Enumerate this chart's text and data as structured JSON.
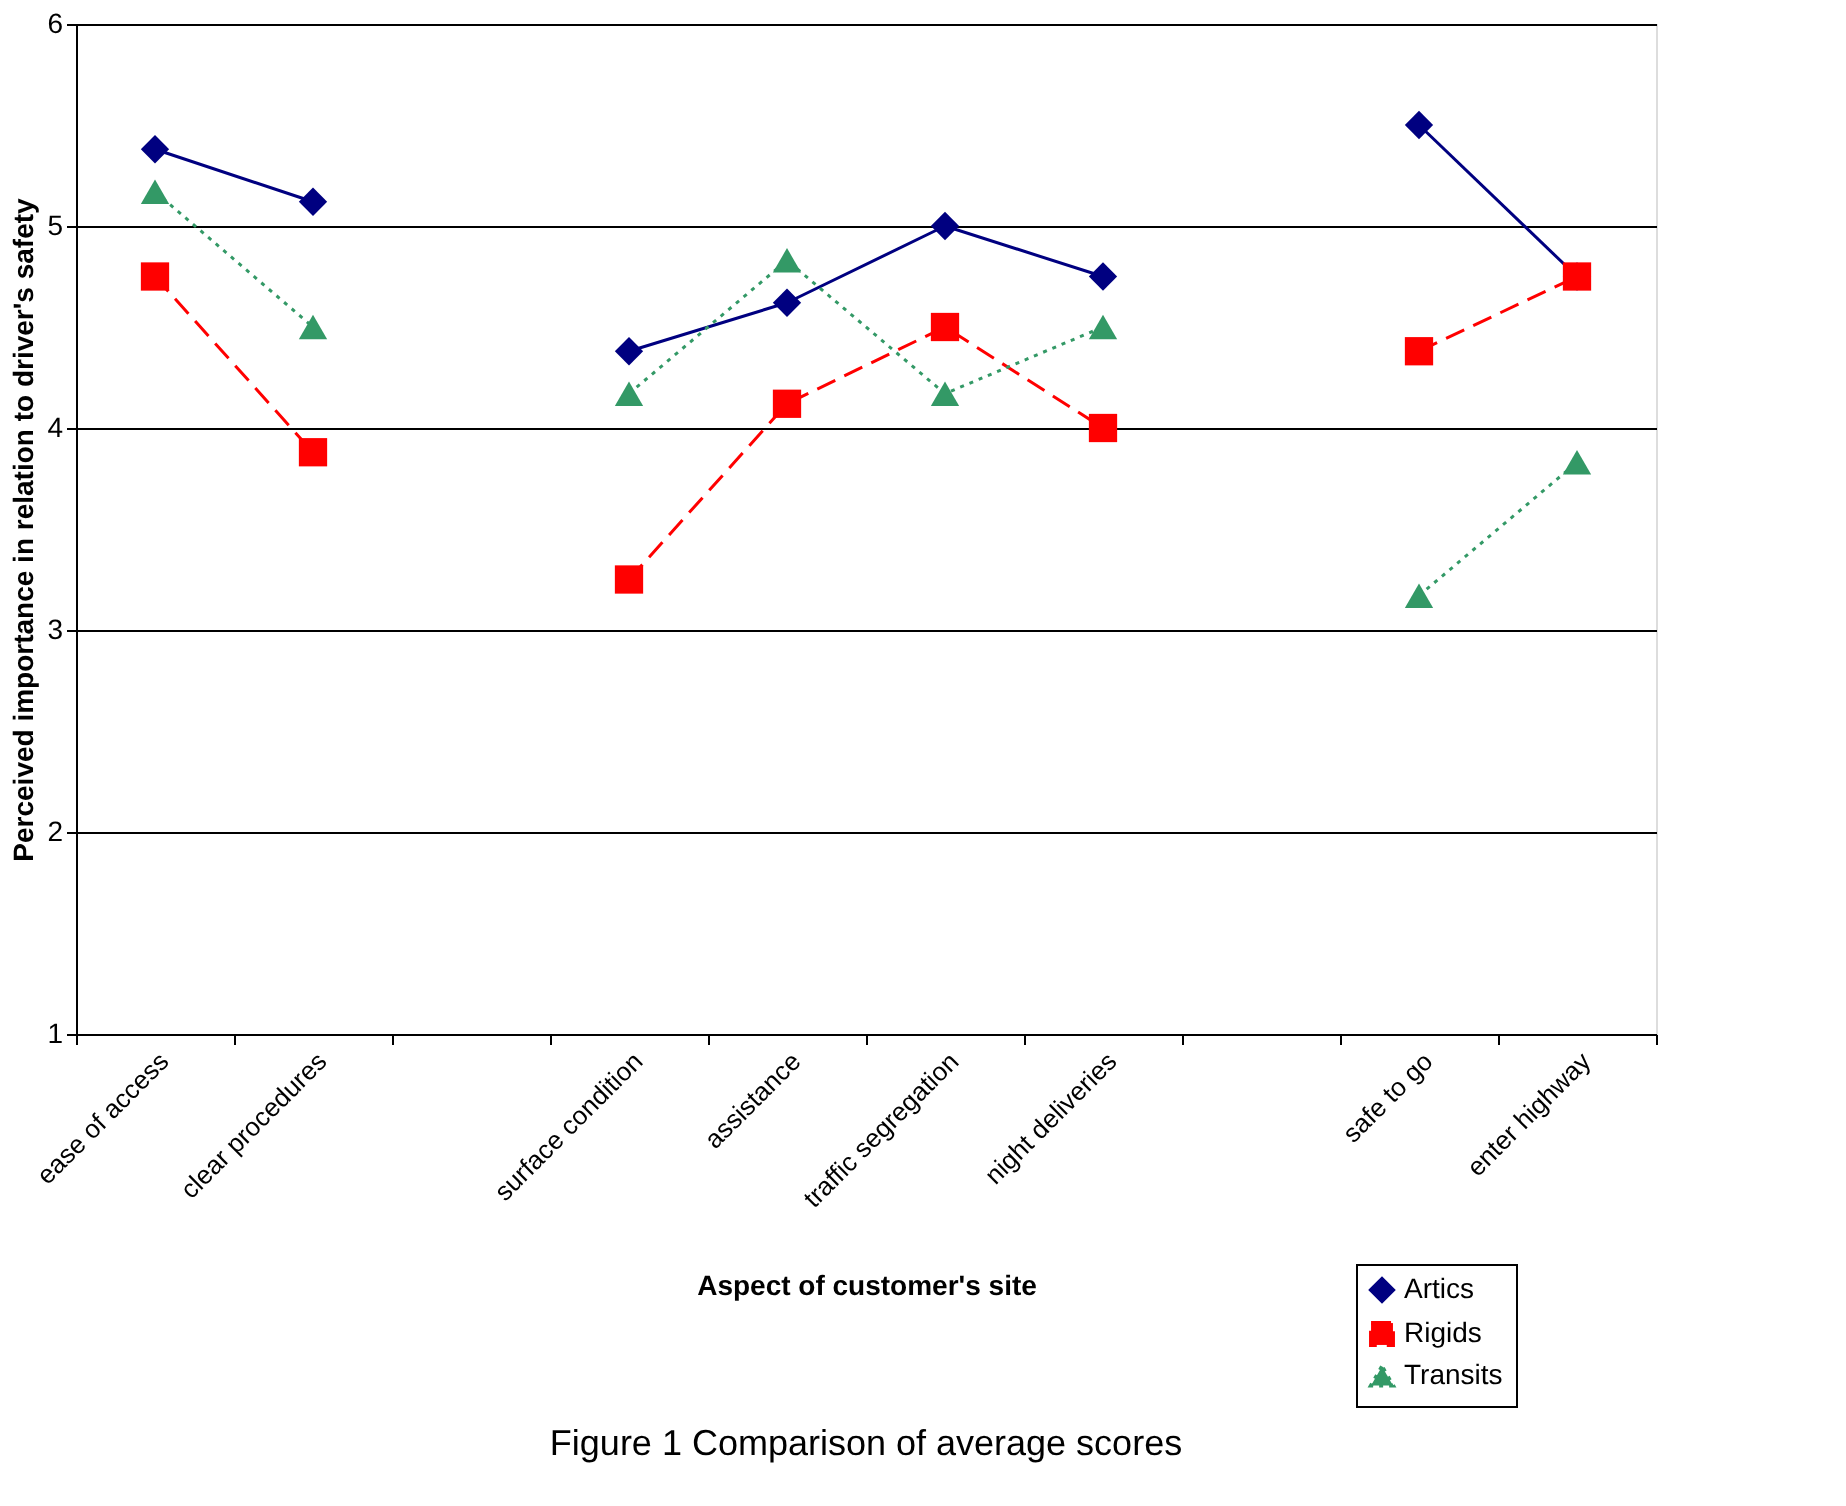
{
  "chart_data": {
    "type": "line",
    "title": "Figure 1 Comparison of average scores",
    "xlabel": "Aspect of customer's site",
    "ylabel": "Perceived importance in relation to driver's safety",
    "categories": [
      "ease of access",
      "clear procedures",
      null,
      "surface condition",
      "assistance",
      "traffic segregation",
      "night deliveries",
      null,
      "safe to go",
      "enter highway"
    ],
    "series": [
      {
        "name": "Artics",
        "color": "#000080",
        "marker": "diamond",
        "line_style": "solid",
        "values": [
          5.38,
          5.12,
          null,
          4.38,
          4.62,
          5.0,
          4.75,
          null,
          5.5,
          4.75
        ]
      },
      {
        "name": "Rigids",
        "color": "#ff0000",
        "marker": "square",
        "line_style": "dashed",
        "values": [
          4.75,
          3.88,
          null,
          3.25,
          4.12,
          4.5,
          4.0,
          null,
          4.38,
          4.75
        ]
      },
      {
        "name": "Transits",
        "color": "#339966",
        "marker": "triangle",
        "line_style": "dotted",
        "values": [
          5.17,
          4.5,
          null,
          4.17,
          4.83,
          4.17,
          4.5,
          null,
          3.17,
          3.83
        ]
      }
    ],
    "ylim": [
      1,
      6
    ],
    "yticks": [
      1,
      2,
      3,
      4,
      5,
      6
    ],
    "grid": "y",
    "legend": "bottom right"
  }
}
